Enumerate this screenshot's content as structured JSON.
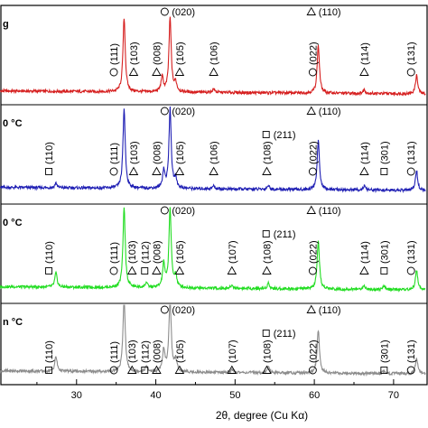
{
  "chart_data": {
    "type": "line",
    "title": "",
    "xlabel": "2θ, degree (Cu Kα)",
    "ylabel": "",
    "xlim": [
      20,
      74
    ],
    "xticks": [
      30,
      40,
      50,
      60,
      70
    ],
    "tick_labels": [
      "30",
      "40",
      "50",
      "60",
      "70"
    ],
    "symbols": {
      "circle": "○",
      "delta": "Δ",
      "square": "□"
    },
    "series": [
      {
        "label": "g",
        "color": "#d62020",
        "peaks": [
          [
            36.0,
            1.0
          ],
          [
            40.8,
            0.2
          ],
          [
            41.8,
            1.0
          ],
          [
            42.5,
            0.12
          ],
          [
            47.3,
            0.05
          ],
          [
            60.5,
            0.65
          ],
          [
            66.3,
            0.05
          ],
          [
            72.9,
            0.25
          ]
        ],
        "annotations": [
          {
            "symbol": "circle",
            "text": "(111)",
            "x": 34.7,
            "orient": "v"
          },
          {
            "symbol": "delta",
            "text": "(103)",
            "x": 37.2,
            "orient": "v"
          },
          {
            "symbol": "delta",
            "text": "(008)",
            "x": 40.1,
            "orient": "v"
          },
          {
            "symbol": "circle",
            "text": "(020)",
            "x": 41.8,
            "orient": "h"
          },
          {
            "symbol": "delta",
            "text": "(105)",
            "x": 43.0,
            "orient": "v"
          },
          {
            "symbol": "delta",
            "text": "(106)",
            "x": 47.3,
            "orient": "v"
          },
          {
            "symbol": "circle",
            "text": "(022)",
            "x": 59.8,
            "orient": "v"
          },
          {
            "symbol": "delta",
            "text": "(110)",
            "x": 60.3,
            "orient": "h"
          },
          {
            "symbol": "delta",
            "text": "(114)",
            "x": 66.3,
            "orient": "v"
          },
          {
            "symbol": "circle",
            "text": "(131)",
            "x": 72.2,
            "orient": "v"
          }
        ]
      },
      {
        "label": "0 °C",
        "color": "#1f1fb4",
        "peaks": [
          [
            27.4,
            0.06
          ],
          [
            36.0,
            1.0
          ],
          [
            41.0,
            0.22
          ],
          [
            41.8,
            1.0
          ],
          [
            42.5,
            0.12
          ],
          [
            47.3,
            0.04
          ],
          [
            54.2,
            0.05
          ],
          [
            60.5,
            0.62
          ],
          [
            66.3,
            0.05
          ],
          [
            72.9,
            0.25
          ]
        ],
        "annotations": [
          {
            "symbol": "square",
            "text": "(110)",
            "x": 26.5,
            "orient": "v"
          },
          {
            "symbol": "circle",
            "text": "(111)",
            "x": 34.7,
            "orient": "v"
          },
          {
            "symbol": "delta",
            "text": "(103)",
            "x": 37.2,
            "orient": "v"
          },
          {
            "symbol": "delta",
            "text": "(008)",
            "x": 40.1,
            "orient": "v"
          },
          {
            "symbol": "circle",
            "text": "(020)",
            "x": 41.8,
            "orient": "h"
          },
          {
            "symbol": "delta",
            "text": "(105)",
            "x": 43.0,
            "orient": "v"
          },
          {
            "symbol": "delta",
            "text": "(106)",
            "x": 47.3,
            "orient": "v"
          },
          {
            "symbol": "delta",
            "text": "(108)",
            "x": 54.0,
            "orient": "v"
          },
          {
            "symbol": "square",
            "text": "(211)",
            "x": 54.6,
            "orient": "h"
          },
          {
            "symbol": "circle",
            "text": "(022)",
            "x": 59.8,
            "orient": "v"
          },
          {
            "symbol": "delta",
            "text": "(110)",
            "x": 60.3,
            "orient": "h"
          },
          {
            "symbol": "delta",
            "text": "(114)",
            "x": 66.3,
            "orient": "v"
          },
          {
            "symbol": "square",
            "text": "(301)",
            "x": 68.8,
            "orient": "v"
          },
          {
            "symbol": "circle",
            "text": "(131)",
            "x": 72.2,
            "orient": "v"
          }
        ]
      },
      {
        "label": "0 °C",
        "color": "#22dd22",
        "peaks": [
          [
            27.4,
            0.18
          ],
          [
            36.0,
            1.0
          ],
          [
            38.8,
            0.06
          ],
          [
            41.0,
            0.3
          ],
          [
            41.8,
            1.0
          ],
          [
            42.5,
            0.15
          ],
          [
            49.6,
            0.04
          ],
          [
            54.2,
            0.07
          ],
          [
            60.5,
            0.6
          ],
          [
            66.3,
            0.05
          ],
          [
            68.8,
            0.04
          ],
          [
            72.9,
            0.25
          ]
        ],
        "annotations": [
          {
            "symbol": "square",
            "text": "(110)",
            "x": 26.5,
            "orient": "v"
          },
          {
            "symbol": "circle",
            "text": "(111)",
            "x": 34.7,
            "orient": "v"
          },
          {
            "symbol": "delta",
            "text": "(103)",
            "x": 37.0,
            "orient": "v"
          },
          {
            "symbol": "square",
            "text": "(112)",
            "x": 38.6,
            "orient": "v"
          },
          {
            "symbol": "delta",
            "text": "(008)",
            "x": 40.1,
            "orient": "v"
          },
          {
            "symbol": "circle",
            "text": "(020)",
            "x": 41.8,
            "orient": "h"
          },
          {
            "symbol": "delta",
            "text": "(105)",
            "x": 43.0,
            "orient": "v"
          },
          {
            "symbol": "delta",
            "text": "(107)",
            "x": 49.6,
            "orient": "v"
          },
          {
            "symbol": "delta",
            "text": "(108)",
            "x": 54.0,
            "orient": "v"
          },
          {
            "symbol": "square",
            "text": "(211)",
            "x": 54.6,
            "orient": "h"
          },
          {
            "symbol": "circle",
            "text": "(022)",
            "x": 59.8,
            "orient": "v"
          },
          {
            "symbol": "delta",
            "text": "(110)",
            "x": 60.3,
            "orient": "h"
          },
          {
            "symbol": "delta",
            "text": "(114)",
            "x": 66.3,
            "orient": "v"
          },
          {
            "symbol": "square",
            "text": "(301)",
            "x": 68.8,
            "orient": "v"
          },
          {
            "symbol": "circle",
            "text": "(131)",
            "x": 72.2,
            "orient": "v"
          }
        ]
      },
      {
        "label": "n °C",
        "color": "#8c8c8c",
        "peaks": [
          [
            27.4,
            0.2
          ],
          [
            36.0,
            1.0
          ],
          [
            38.8,
            0.07
          ],
          [
            41.0,
            0.3
          ],
          [
            41.8,
            1.0
          ],
          [
            42.5,
            0.16
          ],
          [
            49.6,
            0.04
          ],
          [
            54.2,
            0.08
          ],
          [
            60.5,
            0.58
          ],
          [
            68.8,
            0.04
          ],
          [
            72.9,
            0.22
          ]
        ],
        "annotations": [
          {
            "symbol": "square",
            "text": "(110)",
            "x": 26.5,
            "orient": "v"
          },
          {
            "symbol": "circle",
            "text": "(111)",
            "x": 34.7,
            "orient": "v"
          },
          {
            "symbol": "delta",
            "text": "(103)",
            "x": 37.0,
            "orient": "v"
          },
          {
            "symbol": "square",
            "text": "(112)",
            "x": 38.6,
            "orient": "v"
          },
          {
            "symbol": "delta",
            "text": "(008)",
            "x": 40.1,
            "orient": "v"
          },
          {
            "symbol": "circle",
            "text": "(020)",
            "x": 41.8,
            "orient": "h"
          },
          {
            "symbol": "delta",
            "text": "(105)",
            "x": 43.0,
            "orient": "v"
          },
          {
            "symbol": "delta",
            "text": "(107)",
            "x": 49.6,
            "orient": "v"
          },
          {
            "symbol": "delta",
            "text": "(108)",
            "x": 54.0,
            "orient": "v"
          },
          {
            "symbol": "square",
            "text": "(211)",
            "x": 54.6,
            "orient": "h"
          },
          {
            "symbol": "circle",
            "text": "(022)",
            "x": 59.8,
            "orient": "v"
          },
          {
            "symbol": "delta",
            "text": "(110)",
            "x": 60.3,
            "orient": "h"
          },
          {
            "symbol": "square",
            "text": "(301)",
            "x": 68.8,
            "orient": "v"
          },
          {
            "symbol": "circle",
            "text": "(131)",
            "x": 72.2,
            "orient": "v"
          }
        ]
      }
    ]
  }
}
